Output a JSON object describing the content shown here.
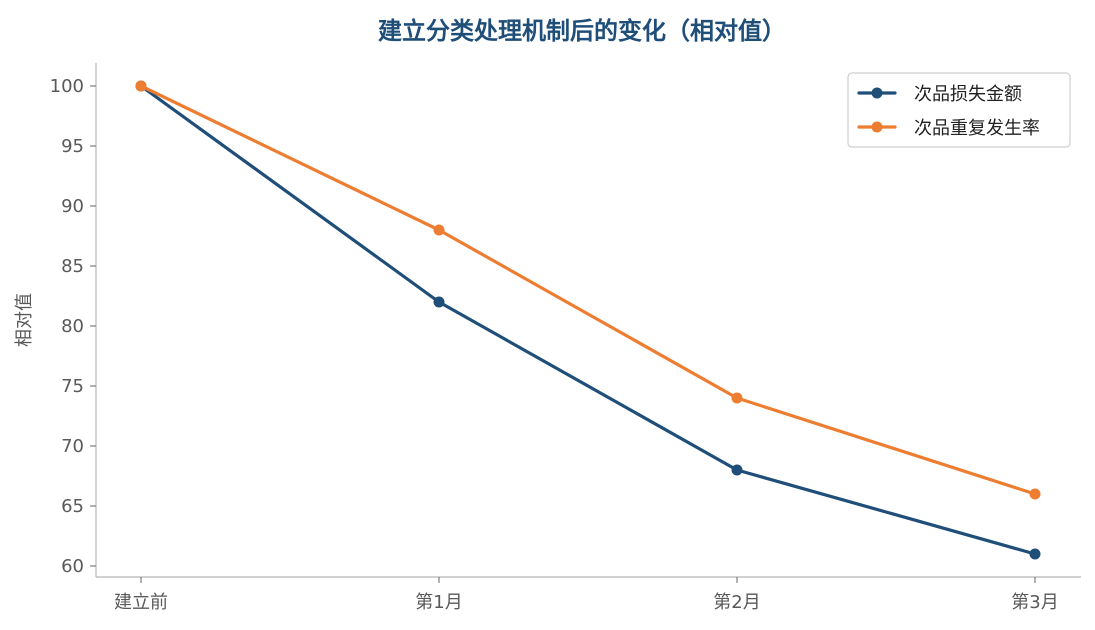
{
  "chart_data": {
    "type": "line",
    "title": "建立分类处理机制后的变化（相对值）",
    "xlabel": "",
    "ylabel": "相对值",
    "categories": [
      "建立前",
      "第1月",
      "第2月",
      "第3月"
    ],
    "ylim": [
      60,
      100
    ],
    "yticks": [
      60,
      65,
      70,
      75,
      80,
      85,
      90,
      95,
      100
    ],
    "grid": false,
    "legend_position": "top-right",
    "series": [
      {
        "name": "次品损失金额",
        "values": [
          100,
          82,
          68,
          61
        ],
        "color": "#1f4e79"
      },
      {
        "name": "次品重复发生率",
        "values": [
          100,
          88,
          74,
          66
        ],
        "color": "#ed7d31"
      }
    ]
  }
}
